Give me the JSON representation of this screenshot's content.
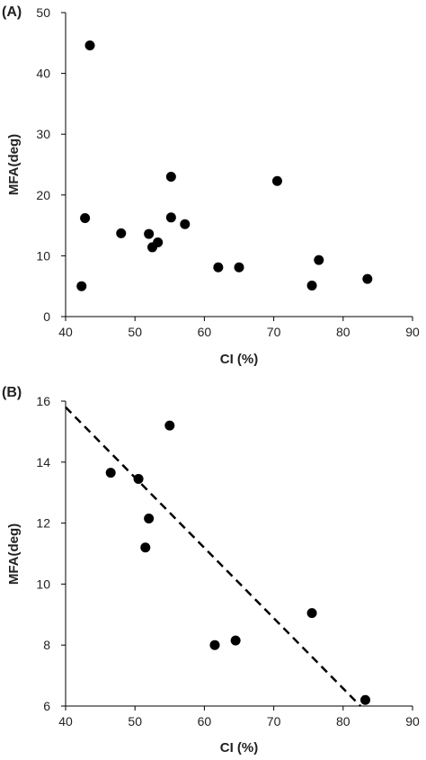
{
  "chart_data": [
    {
      "type": "scatter",
      "panel_label": "(A)",
      "xlabel": "CI (%)",
      "ylabel": "MFA(deg)",
      "xlim": [
        40,
        90
      ],
      "ylim": [
        0,
        50
      ],
      "xticks": [
        40,
        50,
        60,
        70,
        80,
        90
      ],
      "yticks": [
        0,
        10,
        20,
        30,
        40,
        50
      ],
      "marker_color": "#000000",
      "grid": false,
      "series": [
        {
          "points": [
            {
              "x": 42.3,
              "y": 5.0
            },
            {
              "x": 42.8,
              "y": 16.2
            },
            {
              "x": 43.5,
              "y": 44.6
            },
            {
              "x": 48.0,
              "y": 13.7
            },
            {
              "x": 52.0,
              "y": 13.6
            },
            {
              "x": 52.5,
              "y": 11.4
            },
            {
              "x": 53.3,
              "y": 12.2
            },
            {
              "x": 55.2,
              "y": 23.0
            },
            {
              "x": 55.2,
              "y": 16.3
            },
            {
              "x": 57.2,
              "y": 15.2
            },
            {
              "x": 62.0,
              "y": 8.1
            },
            {
              "x": 65.0,
              "y": 8.1
            },
            {
              "x": 70.5,
              "y": 22.3
            },
            {
              "x": 75.5,
              "y": 5.1
            },
            {
              "x": 76.5,
              "y": 9.3
            },
            {
              "x": 83.5,
              "y": 6.2
            }
          ]
        }
      ]
    },
    {
      "type": "scatter",
      "panel_label": "(B)",
      "xlabel": "CI (%)",
      "ylabel": "MFA(deg)",
      "xlim": [
        40,
        90
      ],
      "ylim": [
        6,
        16
      ],
      "xticks": [
        40,
        50,
        60,
        70,
        80,
        90
      ],
      "yticks": [
        6,
        8,
        10,
        12,
        14,
        16
      ],
      "marker_color": "#000000",
      "grid": false,
      "series": [
        {
          "points": [
            {
              "x": 46.5,
              "y": 13.65
            },
            {
              "x": 50.5,
              "y": 13.45
            },
            {
              "x": 51.5,
              "y": 11.2
            },
            {
              "x": 52.0,
              "y": 12.15
            },
            {
              "x": 55.0,
              "y": 15.2
            },
            {
              "x": 61.5,
              "y": 8.0
            },
            {
              "x": 64.5,
              "y": 8.15
            },
            {
              "x": 75.5,
              "y": 9.05
            },
            {
              "x": 83.2,
              "y": 6.2
            }
          ]
        }
      ],
      "trendline": {
        "style": "dashed",
        "color": "#000000",
        "x": [
          40,
          82.5
        ],
        "y": [
          15.8,
          6.0
        ]
      }
    }
  ]
}
